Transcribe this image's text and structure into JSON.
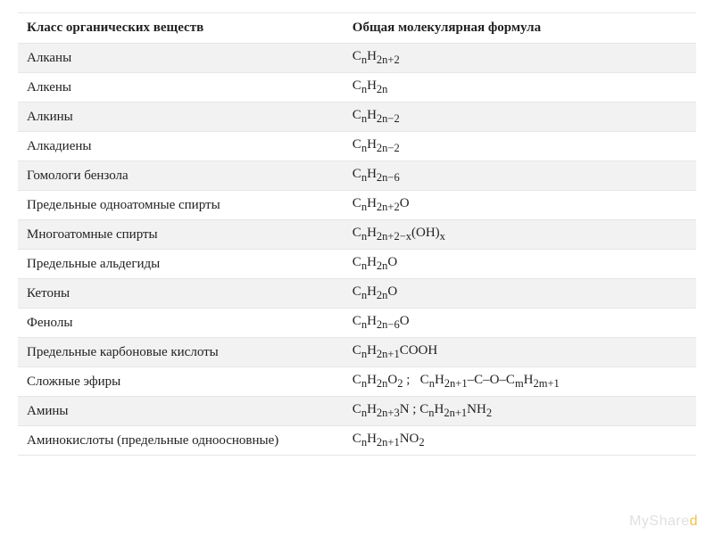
{
  "table": {
    "headers": {
      "class": "Класс органических веществ",
      "formula": "Общая молекулярная формула"
    },
    "rows": [
      {
        "class": "Алканы",
        "formula": "C<sub>n</sub>H<sub>2n+2</sub>"
      },
      {
        "class": "Алкены",
        "formula": "C<sub>n</sub>H<sub>2n</sub>"
      },
      {
        "class": "Алкины",
        "formula": "C<sub>n</sub>H<sub>2n−2</sub>"
      },
      {
        "class": "Алкадиены",
        "formula": "C<sub>n</sub>H<sub>2n−2</sub>"
      },
      {
        "class": "Гомологи бензола",
        "formula": "C<sub>n</sub>H<sub>2n−6</sub>"
      },
      {
        "class": "Предельные одноатомные спирты",
        "formula": "C<sub>n</sub>H<sub>2n+2</sub>O"
      },
      {
        "class": "Многоатомные спирты",
        "formula": "C<sub>n</sub>H<sub>2n+2−x</sub>(OH)<sub>x</sub>"
      },
      {
        "class": "Предельные альдегиды",
        "formula": "C<sub>n</sub>H<sub>2n</sub>O"
      },
      {
        "class": "Кетоны",
        "formula": "C<sub>n</sub>H<sub>2n</sub>O"
      },
      {
        "class": "Фенолы",
        "formula": "C<sub>n</sub>H<sub>2n−6</sub>O"
      },
      {
        "class": "Предельные карбоновые кислоты",
        "formula": "C<sub>n</sub>H<sub>2n+1</sub>COOH"
      },
      {
        "class": "Сложные эфиры",
        "formula": "C<sub>n</sub>H<sub>2n</sub>O<sub>2</sub> ;&nbsp;&nbsp; C<sub>n</sub>H<sub>2n+1</sub>–C–O–C<sub>m</sub>H<sub>2m+1</sub>"
      },
      {
        "class": "Амины",
        "formula": "C<sub>n</sub>H<sub>2n+3</sub>N ; C<sub>n</sub>H<sub>2n+1</sub>NH<sub>2</sub>"
      },
      {
        "class": "Аминокислоты (предельные одноосновные)",
        "formula": "C<sub>n</sub>H<sub>2n+1</sub>NO<sub>2</sub>"
      }
    ]
  },
  "watermark": {
    "prefix": "MyShare",
    "accent": "d"
  },
  "style": {
    "row_odd_bg": "#f1f2f1",
    "row_even_bg": "#ffffff",
    "border_color": "#e6e6e6",
    "text_color": "#222222",
    "font_family": "Times New Roman",
    "font_size_pt": 11,
    "header_weight": 700,
    "watermark_color": "#e0e0e0",
    "watermark_accent_color": "#f2c04a"
  }
}
